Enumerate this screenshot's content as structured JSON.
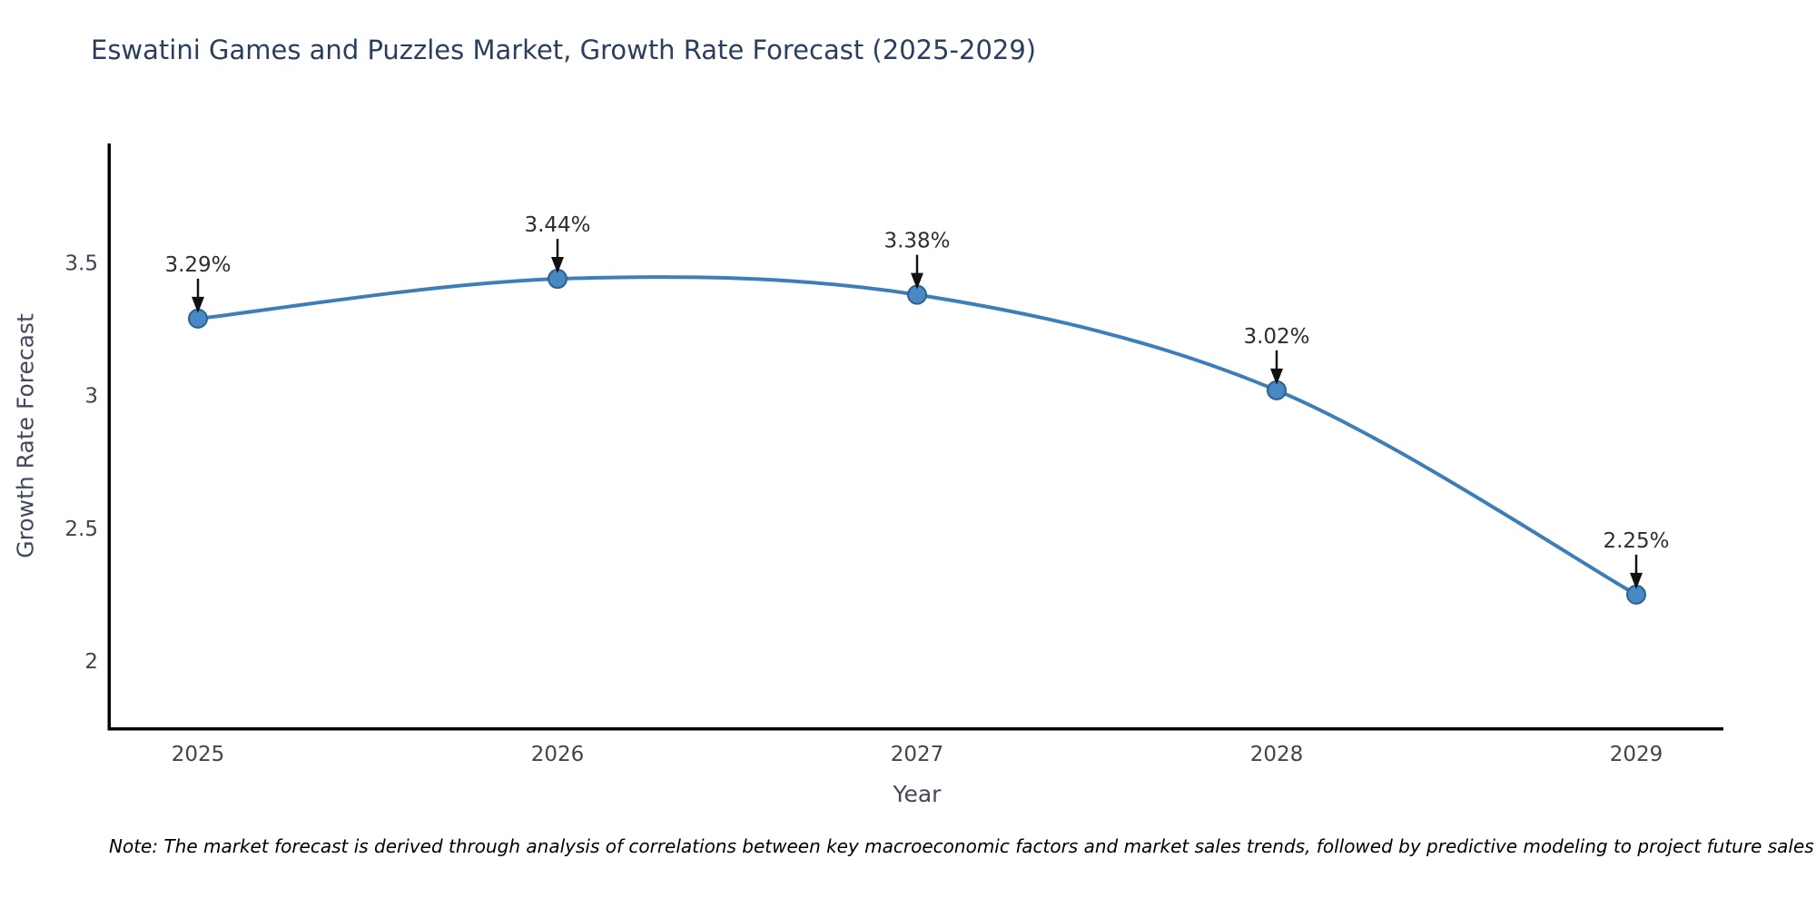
{
  "chart_data": {
    "type": "line",
    "title": "Eswatini Games and Puzzles Market, Growth Rate Forecast (2025-2029)",
    "xlabel": "Year",
    "ylabel": "Growth Rate Forecast",
    "note": "Note: The market forecast is derived through analysis of correlations between key macroeconomic factors and market sales trends, followed by predictive modeling to project future sales",
    "categories": [
      "2025",
      "2026",
      "2027",
      "2028",
      "2029"
    ],
    "values": [
      3.29,
      3.44,
      3.38,
      3.02,
      2.25
    ],
    "point_labels": [
      "3.29%",
      "3.44%",
      "3.38%",
      "3.02%",
      "2.25%"
    ],
    "yticks": [
      2,
      2.5,
      3,
      3.5
    ],
    "ylim": [
      1.75,
      3.95
    ],
    "grid": false,
    "legend": "none",
    "smooth": true,
    "line_color": "#3d7eb8",
    "marker_fill": "#4689c4",
    "marker_edge": "#2d618f",
    "arrow_color": "#111111",
    "annotation_color": "#2d2d2d",
    "tick_color": "#3f4450",
    "spine_color": "#000000",
    "title_color": "#2a3f5f",
    "axis_label_color": "#42495a"
  }
}
